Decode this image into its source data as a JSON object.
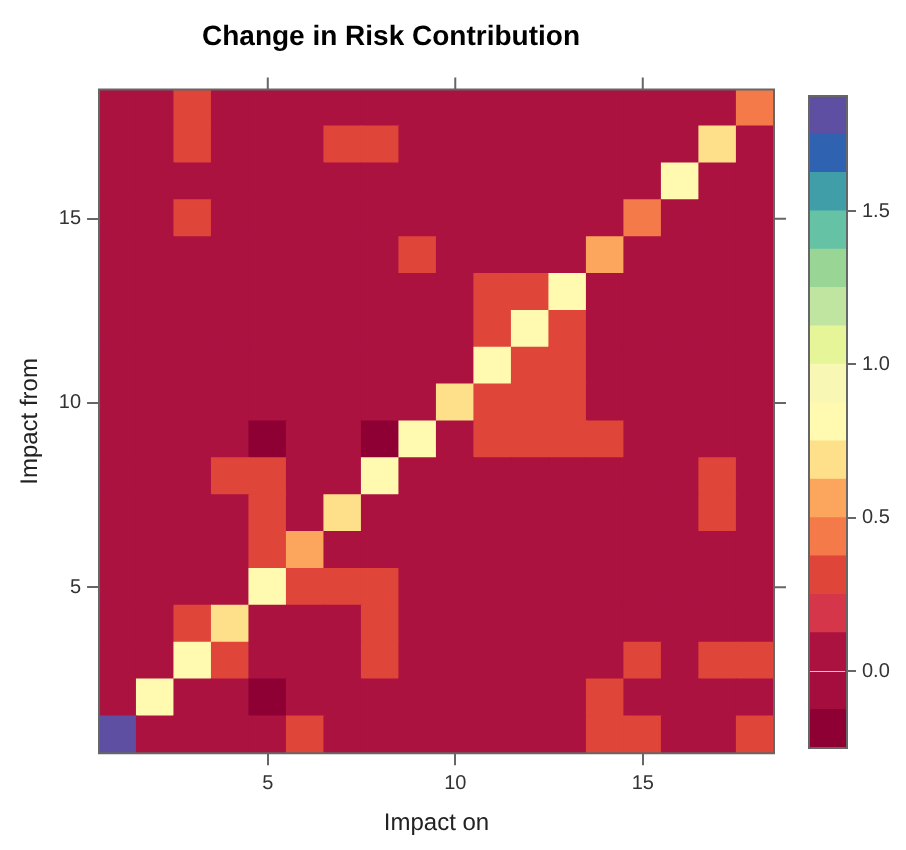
{
  "chart_data": {
    "type": "heatmap",
    "title": "Change in Risk Contribution",
    "xlabel": "Impact on",
    "ylabel": "Impact from",
    "categories": [
      null,
      null,
      null,
      null,
      "5",
      null,
      null,
      null,
      null,
      "10",
      null,
      null,
      null,
      null,
      "15",
      null,
      null,
      null
    ],
    "y_categories": [
      null,
      null,
      null,
      "15",
      null,
      null,
      null,
      null,
      "10",
      null,
      null,
      null,
      null,
      "5",
      null,
      null,
      null,
      null
    ],
    "cells": [
      [
        0,
        0,
        0.3,
        0,
        0,
        0,
        0,
        0,
        0,
        0,
        0,
        0,
        0,
        0,
        0,
        0,
        0,
        0.45
      ],
      [
        0,
        0,
        0.3,
        0,
        0,
        0,
        0.3,
        0.3,
        0,
        0,
        0,
        0,
        0,
        0,
        0,
        0,
        0.7,
        0
      ],
      [
        0,
        0,
        0,
        0,
        0,
        0,
        0,
        0,
        0,
        0,
        0,
        0,
        0,
        0,
        0,
        0.85,
        0,
        0
      ],
      [
        0,
        0,
        0.3,
        0,
        0,
        0,
        0,
        0,
        0,
        0,
        0,
        0,
        0,
        0,
        0.45,
        0,
        0,
        0
      ],
      [
        0,
        0,
        0,
        0,
        0,
        0,
        0,
        0,
        0.3,
        0,
        0,
        0,
        0,
        0.55,
        0,
        0,
        0,
        0
      ],
      [
        0,
        0,
        0,
        0,
        0,
        0,
        0,
        0,
        0,
        0,
        0.3,
        0.3,
        0.85,
        0,
        0,
        0,
        0,
        0
      ],
      [
        0,
        0,
        0,
        0,
        0,
        0,
        0,
        0,
        0,
        0,
        0.3,
        0.85,
        0.3,
        0,
        0,
        0,
        0,
        0
      ],
      [
        0,
        0,
        0,
        0,
        0,
        0,
        0,
        0,
        0,
        0,
        0.85,
        0.3,
        0.3,
        0,
        0,
        0,
        0,
        0
      ],
      [
        0,
        0,
        0,
        0,
        0,
        0,
        0,
        0,
        0,
        0.7,
        0.3,
        0.3,
        0.3,
        0,
        0,
        0,
        0,
        0
      ],
      [
        0,
        0,
        0,
        0,
        -0.2,
        0,
        0,
        -0.2,
        0.85,
        0,
        0.3,
        0.3,
        0.3,
        0.3,
        0,
        0,
        0,
        0
      ],
      [
        0,
        0,
        0,
        0.3,
        0.3,
        0,
        0,
        0.85,
        0,
        0,
        0,
        0,
        0,
        0,
        0,
        0,
        0.3,
        0
      ],
      [
        0,
        0,
        0,
        0,
        0.3,
        0,
        0.7,
        0,
        0,
        0,
        0,
        0,
        0,
        0,
        0,
        0,
        0.3,
        0
      ],
      [
        0,
        0,
        0,
        0,
        0.3,
        0.55,
        0,
        0,
        0,
        0,
        0,
        0,
        0,
        0,
        0,
        0,
        0,
        0
      ],
      [
        0,
        0,
        0,
        0,
        0.85,
        0.3,
        0.3,
        0.3,
        0,
        0,
        0,
        0,
        0,
        0,
        0,
        0,
        0,
        0
      ],
      [
        0,
        0,
        0.3,
        0.7,
        0,
        0,
        0,
        0.3,
        0,
        0,
        0,
        0,
        0,
        0,
        0,
        0,
        0,
        0
      ],
      [
        0,
        0,
        0.85,
        0.3,
        0,
        0,
        0,
        0.3,
        0,
        0,
        0,
        0,
        0,
        0,
        0.3,
        0,
        0.3,
        0.3
      ],
      [
        0,
        0.85,
        0,
        0,
        -0.2,
        0,
        0,
        0,
        0,
        0,
        0,
        0,
        0,
        0.3,
        0,
        0,
        0,
        0
      ],
      [
        1.8,
        0,
        0,
        0,
        0,
        0.3,
        0,
        0,
        0,
        0,
        0,
        0,
        0,
        0.3,
        0.3,
        0,
        0,
        0.3
      ]
    ],
    "clim": [
      -0.25,
      1.875
    ],
    "cticks": [
      {
        "value": 0,
        "label": "0.0"
      },
      {
        "value": 0.5,
        "label": "0.5"
      },
      {
        "value": 1,
        "label": "1.0"
      },
      1.5
    ]
  }
}
